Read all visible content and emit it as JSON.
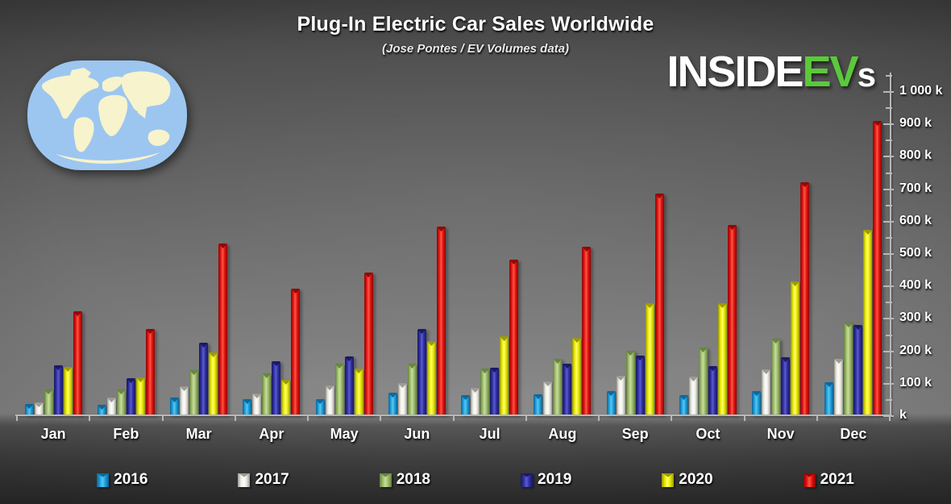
{
  "title": "Plug-In Electric Car Sales Worldwide",
  "subtitle": "(Jose Pontes / EV Volumes data)",
  "logo": {
    "part1": "INSIDE",
    "part2": "EV",
    "part3": "s",
    "accent_green": "#5bc93b"
  },
  "map": {
    "label": "world-map",
    "ocean_color": "#9cc6f0",
    "land_color": "#f7f3cd"
  },
  "chart_data": {
    "type": "bar",
    "title": "Plug-In Electric Car Sales Worldwide",
    "subtitle": "(Jose Pontes / EV Volumes data)",
    "unit": "k (thousand vehicles)",
    "categories": [
      "Jan",
      "Feb",
      "Mar",
      "Apr",
      "May",
      "Jun",
      "Jul",
      "Aug",
      "Sep",
      "Oct",
      "Nov",
      "Dec"
    ],
    "series": [
      {
        "name": "2016",
        "color": "#1b9cd8",
        "light": "#55c8f2",
        "dark": "#0d6395",
        "values": [
          35,
          32,
          54,
          50,
          51,
          70,
          62,
          64,
          75,
          62,
          75,
          102
        ]
      },
      {
        "name": "2017",
        "color": "#e9e9e2",
        "light": "#fdfdfa",
        "dark": "#97978f",
        "values": [
          40,
          54,
          90,
          66,
          91,
          99,
          85,
          105,
          123,
          120,
          141,
          174
        ]
      },
      {
        "name": "2018",
        "color": "#9ab96a",
        "light": "#c8dd9c",
        "dark": "#64823c",
        "values": [
          79,
          80,
          139,
          130,
          160,
          159,
          145,
          174,
          200,
          210,
          236,
          286
        ]
      },
      {
        "name": "2019",
        "color": "#2e2e9e",
        "light": "#5b5bd0",
        "dark": "#18185f",
        "values": [
          155,
          115,
          225,
          166,
          182,
          266,
          148,
          158,
          184,
          151,
          178,
          279
        ]
      },
      {
        "name": "2020",
        "color": "#e6e600",
        "light": "#ffff66",
        "dark": "#96960a",
        "values": [
          150,
          117,
          193,
          110,
          144,
          230,
          245,
          239,
          345,
          345,
          413,
          572
        ]
      },
      {
        "name": "2021",
        "color": "#dd1111",
        "light": "#ff5540",
        "dark": "#8c0505",
        "values": [
          320,
          267,
          530,
          391,
          441,
          583,
          479,
          520,
          685,
          588,
          720,
          907
        ]
      }
    ],
    "y_axis": {
      "max": 1050,
      "major_step": 100,
      "minor_step": 50,
      "labels": [
        {
          "text": "1 000 k",
          "value": 1000
        },
        {
          "text": "900 k",
          "value": 900
        },
        {
          "text": "800 k",
          "value": 800
        },
        {
          "text": "700 k",
          "value": 700
        },
        {
          "text": "600 k",
          "value": 600
        },
        {
          "text": "500 k",
          "value": 500
        },
        {
          "text": "400 k",
          "value": 400
        },
        {
          "text": "300 k",
          "value": 300
        },
        {
          "text": "200 k",
          "value": 200
        },
        {
          "text": "100 k",
          "value": 100
        },
        {
          "text": "k",
          "value": 0
        }
      ]
    },
    "legend_position": "bottom",
    "grid": false
  }
}
